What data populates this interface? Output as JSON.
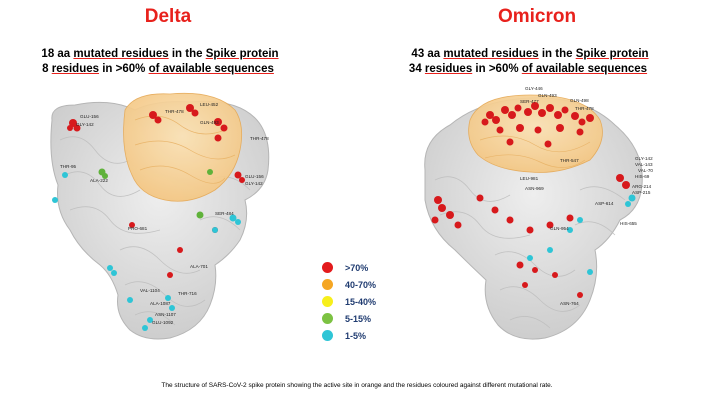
{
  "delta": {
    "title": "Delta",
    "line1_pre": "18 aa ",
    "line1_link": "mutated residues",
    "line1_mid": " in the ",
    "line1_link2": "Spike protein",
    "line2_pre": "8 ",
    "line2_link": "residues",
    "line2_mid": " in >60% ",
    "line2_link2": "of available sequences",
    "residue_labels": [
      "GLU-156",
      "GLY-142",
      "THR-478",
      "LEU-452",
      "THR-95",
      "ALA-222",
      "GLN-493",
      "THR-478",
      "GLU-156",
      "GLY-142",
      "SER-484",
      "ALA-701",
      "VAL-1104",
      "ALA-1087",
      "THR-716",
      "PRO-681",
      "ASN-1107",
      "GLU-1092"
    ]
  },
  "omicron": {
    "title": "Omicron",
    "line1_pre": "43 aa ",
    "line1_link": "mutated residues",
    "line1_mid": " in the ",
    "line1_link2": "Spike protein",
    "line2_pre": "34 ",
    "line2_link": "residues",
    "line2_mid": " in >60% ",
    "line2_link2": "of available sequences",
    "residue_labels": [
      "GLY-446",
      "GLN-493",
      "GLN-498",
      "SER-477",
      "THR-478",
      "GLY-142",
      "VAL-143",
      "VAL-70",
      "HIS-69",
      "ARG-214",
      "ASP-215",
      "THR-547",
      "ASN-969",
      "ASP-614",
      "GLN-954",
      "HIS-655",
      "LEU-981",
      "ASN-764"
    ]
  },
  "legend": {
    "items": [
      {
        "label": ">70%",
        "color": "#e31a1c"
      },
      {
        "label": "40-70%",
        "color": "#f5a623"
      },
      {
        "label": "15-40%",
        "color": "#f7ef1b"
      },
      {
        "label": "5-15%",
        "color": "#7cc242"
      },
      {
        "label": "1-5%",
        "color": "#2ec5d6"
      }
    ]
  },
  "caption": "The structure of SARS-CoV-2 spike protein showing the active site in orange and the residues coloured against different mutational rate."
}
